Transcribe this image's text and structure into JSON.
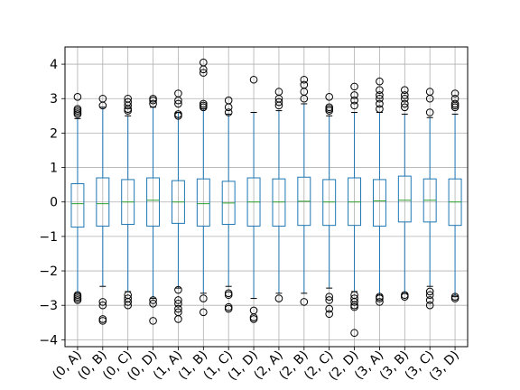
{
  "chart_data": {
    "type": "boxplot",
    "categories": [
      "(0, A)",
      "(0, B)",
      "(0, C)",
      "(0, D)",
      "(1, A)",
      "(1, B)",
      "(1, C)",
      "(1, D)",
      "(2, A)",
      "(2, B)",
      "(2, C)",
      "(2, D)",
      "(3, A)",
      "(3, B)",
      "(3, C)",
      "(3, D)"
    ],
    "y_ticks": [
      -4,
      -3,
      -2,
      -1,
      0,
      1,
      2,
      3,
      4
    ],
    "y_tick_labels": [
      "−4",
      "−3",
      "−2",
      "−1",
      "0",
      "1",
      "2",
      "3",
      "4"
    ],
    "ylim": [
      -4.2,
      4.5
    ],
    "grid": true,
    "x_tick_rotation_deg": 45,
    "colors": {
      "box": "#1f77b4",
      "median": "#2ca02c",
      "grid": "#b0b0b0",
      "outlier": "#000000"
    },
    "boxes": [
      {
        "q1": -0.73,
        "median": -0.05,
        "q3": 0.53,
        "whislo": -2.65,
        "whishi": 2.42,
        "fliers": [
          3.05,
          2.7,
          2.65,
          2.6,
          2.55,
          -2.7,
          -2.75,
          -2.8,
          -2.85
        ]
      },
      {
        "q1": -0.7,
        "median": -0.05,
        "q3": 0.7,
        "whislo": -2.45,
        "whishi": 2.75,
        "fliers": [
          3.0,
          2.8,
          -2.9,
          -3.0,
          -3.4,
          -3.45
        ]
      },
      {
        "q1": -0.65,
        "median": 0.0,
        "q3": 0.65,
        "whislo": -2.6,
        "whishi": 2.5,
        "fliers": [
          3.0,
          2.9,
          2.8,
          2.7,
          2.65,
          -2.7,
          -2.8,
          -2.9,
          -3.0
        ]
      },
      {
        "q1": -0.7,
        "median": 0.05,
        "q3": 0.7,
        "whislo": -2.8,
        "whishi": 2.75,
        "fliers": [
          3.0,
          2.95,
          2.85,
          -2.85,
          -2.95,
          -3.45
        ]
      },
      {
        "q1": -0.62,
        "median": 0.0,
        "q3": 0.62,
        "whislo": -2.5,
        "whishi": 2.6,
        "fliers": [
          3.15,
          2.95,
          2.85,
          2.55,
          2.5,
          -2.55,
          -2.85,
          -2.95,
          -3.1,
          -3.2,
          -3.4
        ]
      },
      {
        "q1": -0.7,
        "median": -0.05,
        "q3": 0.67,
        "whislo": -2.65,
        "whishi": 2.7,
        "fliers": [
          4.05,
          3.85,
          3.75,
          2.85,
          2.8,
          2.75,
          -2.8,
          -3.2
        ]
      },
      {
        "q1": -0.65,
        "median": -0.03,
        "q3": 0.6,
        "whislo": -2.45,
        "whishi": 2.55,
        "fliers": [
          2.95,
          2.75,
          2.6,
          -2.65,
          -2.7,
          -3.05,
          -3.1
        ]
      },
      {
        "q1": -0.7,
        "median": 0.0,
        "q3": 0.7,
        "whislo": -2.8,
        "whishi": 2.6,
        "fliers": [
          3.55,
          -3.15,
          -3.35,
          -3.4
        ]
      },
      {
        "q1": -0.7,
        "median": 0.0,
        "q3": 0.67,
        "whislo": -2.65,
        "whishi": 2.65,
        "fliers": [
          3.2,
          3.0,
          2.9,
          2.8,
          -2.8
        ]
      },
      {
        "q1": -0.68,
        "median": 0.02,
        "q3": 0.72,
        "whislo": -2.65,
        "whishi": 2.85,
        "fliers": [
          3.55,
          3.4,
          3.2,
          3.0,
          -2.9
        ]
      },
      {
        "q1": -0.68,
        "median": 0.0,
        "q3": 0.65,
        "whislo": -2.5,
        "whishi": 2.5,
        "fliers": [
          3.05,
          2.75,
          2.7,
          2.65,
          -2.75,
          -2.85,
          -3.1,
          -3.25
        ]
      },
      {
        "q1": -0.68,
        "median": 0.0,
        "q3": 0.7,
        "whislo": -2.6,
        "whishi": 2.6,
        "fliers": [
          3.35,
          3.1,
          2.95,
          2.8,
          -2.7,
          -2.8,
          -2.9,
          -3.0,
          -3.05,
          -3.8
        ]
      },
      {
        "q1": -0.7,
        "median": 0.03,
        "q3": 0.65,
        "whislo": -2.7,
        "whishi": 2.6,
        "fliers": [
          3.5,
          3.25,
          3.1,
          3.0,
          2.85,
          2.7,
          -2.75,
          -2.8,
          -2.9
        ]
      },
      {
        "q1": -0.58,
        "median": 0.05,
        "q3": 0.75,
        "whislo": -2.65,
        "whishi": 2.55,
        "fliers": [
          3.25,
          3.1,
          3.0,
          2.85,
          2.75,
          -2.7,
          -2.75
        ]
      },
      {
        "q1": -0.58,
        "median": 0.05,
        "q3": 0.67,
        "whislo": -2.45,
        "whishi": 2.45,
        "fliers": [
          3.2,
          3.0,
          2.6,
          -2.6,
          -2.7,
          -2.85,
          -3.0
        ]
      },
      {
        "q1": -0.68,
        "median": 0.0,
        "q3": 0.67,
        "whislo": -2.75,
        "whishi": 2.55,
        "fliers": [
          3.15,
          3.0,
          2.85,
          2.8,
          2.75,
          -2.75,
          -2.8
        ]
      }
    ]
  }
}
